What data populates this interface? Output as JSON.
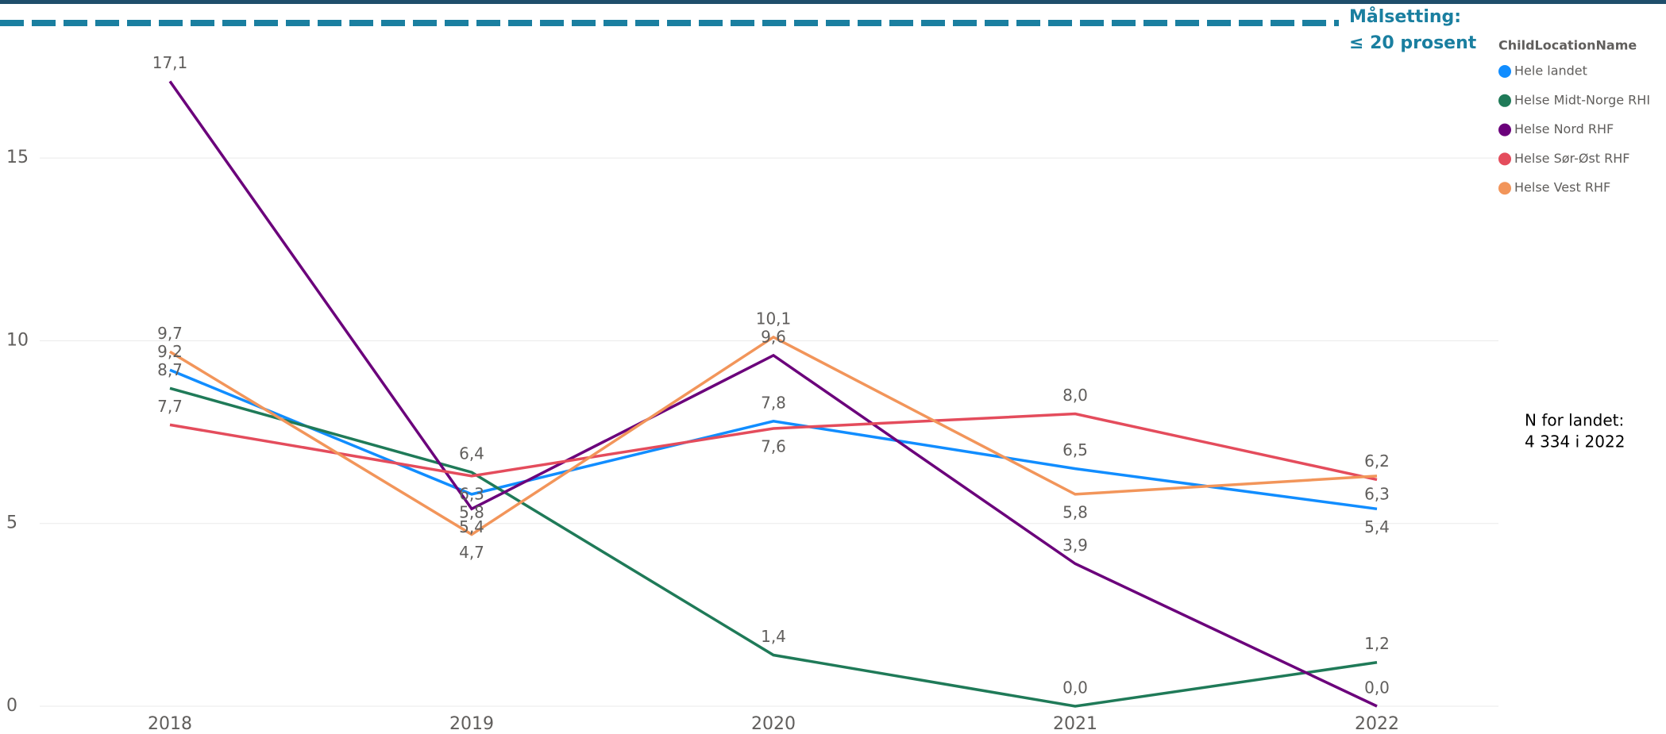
{
  "chart_data": {
    "type": "line",
    "categories": [
      "2018",
      "2019",
      "2020",
      "2021",
      "2022"
    ],
    "series": [
      {
        "name": "Hele landet",
        "color": "#118dff",
        "values": [
          9.2,
          5.8,
          7.8,
          6.5,
          5.4
        ],
        "value_labels": [
          "9,2",
          "5,8",
          "7,8",
          "6,5",
          "5,4"
        ]
      },
      {
        "name": "Helse Midt-Norge RHI",
        "color": "#1f7a58",
        "values": [
          8.7,
          6.4,
          1.4,
          0.0,
          1.2
        ],
        "value_labels": [
          "8,7",
          "6,4",
          "1,4",
          "0,0",
          "1,2"
        ]
      },
      {
        "name": "Helse Nord RHF",
        "color": "#6b007b",
        "values": [
          17.1,
          5.4,
          9.6,
          3.9,
          0.0
        ],
        "value_labels": [
          "17,1",
          "5,4",
          "9,6",
          "3,9",
          "0,0"
        ]
      },
      {
        "name": "Helse Sør-Øst RHF",
        "color": "#e44c5c",
        "values": [
          7.7,
          6.3,
          7.6,
          8.0,
          6.2
        ],
        "value_labels": [
          "7,7",
          "6,3",
          "7,6",
          "8,0",
          "6,2"
        ]
      },
      {
        "name": "Helse Vest RHF",
        "color": "#f2955a",
        "values": [
          9.7,
          4.7,
          10.1,
          5.8,
          6.3
        ],
        "value_labels": [
          "9,7",
          "4,7",
          "10,1",
          "5,8",
          "6,3"
        ]
      }
    ],
    "ylim": [
      0,
      18
    ],
    "yticks": [
      0,
      5,
      10,
      15
    ],
    "grid": true,
    "legend_title": "ChildLocationName",
    "legend_position": "right",
    "target_label": [
      "Målsetting:",
      "≤ 20 prosent"
    ],
    "note": [
      "N for landet:",
      "4 334 i 2022"
    ]
  }
}
